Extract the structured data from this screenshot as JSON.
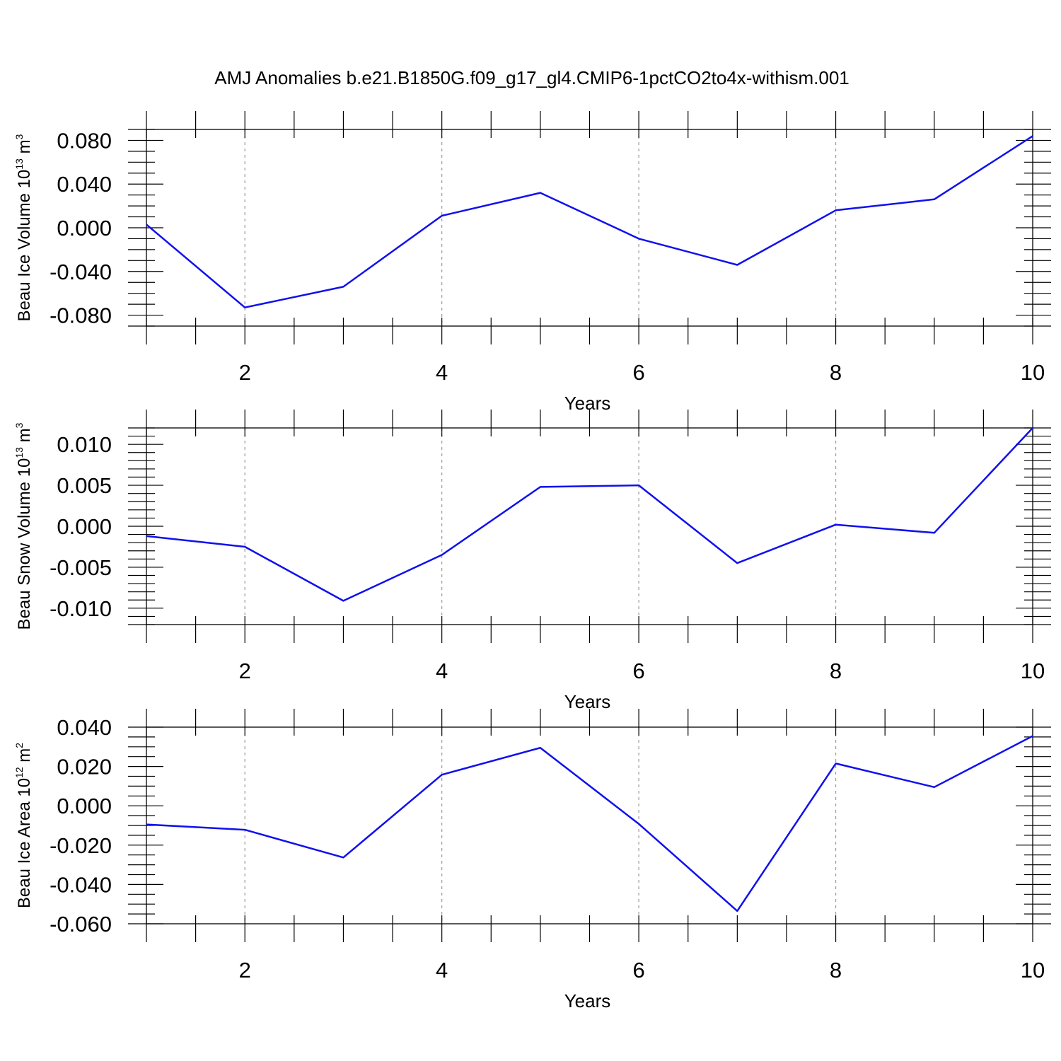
{
  "figure": {
    "title": "AMJ Anomalies b.e21.B1850G.f09_g17_gl4.CMIP6-1pctCO2to4x-withism.001"
  },
  "colors": {
    "line": "#1010ee",
    "grid": "#9a9a9a",
    "axis": "#000000",
    "background": "#ffffff"
  },
  "chart_data": [
    {
      "type": "line",
      "xlabel": "Years",
      "ylabel": {
        "prefix": "Beau Ice Volume 10",
        "exponent": "13",
        "unit": " m",
        "unit_exponent": "3"
      },
      "xlim": [
        1,
        10
      ],
      "ylim": [
        -0.09,
        0.09
      ],
      "xticks": [
        2,
        4,
        6,
        8,
        10
      ],
      "xtick_labels": [
        "2",
        "4",
        "6",
        "8",
        "10"
      ],
      "xminor_step": 0.5,
      "yticks": [
        -0.08,
        -0.04,
        0,
        0.04,
        0.08
      ],
      "ytick_labels": [
        "-0.080",
        "-0.040",
        "0.000",
        "0.040",
        "0.080"
      ],
      "yminor_step": 0.01,
      "grid": "x-dashed",
      "series": [
        {
          "x": [
            1,
            2,
            3,
            4,
            5,
            6,
            7,
            8,
            9,
            10
          ],
          "values": [
            0.003,
            -0.073,
            -0.054,
            0.011,
            0.032,
            -0.01,
            -0.034,
            0.016,
            0.026,
            0.084
          ]
        }
      ]
    },
    {
      "type": "line",
      "xlabel": "Years",
      "ylabel": {
        "prefix": "Beau Snow Volume 10",
        "exponent": "13",
        "unit": " m",
        "unit_exponent": "3"
      },
      "xlim": [
        1,
        10
      ],
      "ylim": [
        -0.012,
        0.012
      ],
      "xticks": [
        2,
        4,
        6,
        8,
        10
      ],
      "xtick_labels": [
        "2",
        "4",
        "6",
        "8",
        "10"
      ],
      "xminor_step": 0.5,
      "yticks": [
        -0.01,
        -0.005,
        0,
        0.005,
        0.01
      ],
      "ytick_labels": [
        "-0.010",
        "-0.005",
        "0.000",
        "0.005",
        "0.010"
      ],
      "yminor_step": 0.001,
      "grid": "x-dashed",
      "series": [
        {
          "x": [
            1,
            2,
            3,
            4,
            5,
            6,
            7,
            8,
            9,
            10
          ],
          "values": [
            -0.0012,
            -0.0025,
            -0.0091,
            -0.0035,
            0.0048,
            0.005,
            -0.0045,
            0.0002,
            -0.0008,
            0.012
          ]
        }
      ]
    },
    {
      "type": "line",
      "xlabel": "Years",
      "ylabel": {
        "prefix": "Beau Ice Area 10",
        "exponent": "12",
        "unit": " m",
        "unit_exponent": "2"
      },
      "xlim": [
        1,
        10
      ],
      "ylim": [
        -0.06,
        0.04
      ],
      "xticks": [
        2,
        4,
        6,
        8,
        10
      ],
      "xtick_labels": [
        "2",
        "4",
        "6",
        "8",
        "10"
      ],
      "xminor_step": 0.5,
      "yticks": [
        -0.06,
        -0.04,
        -0.02,
        0,
        0.02,
        0.04
      ],
      "ytick_labels": [
        "-0.060",
        "-0.040",
        "-0.020",
        "0.000",
        "0.020",
        "0.040"
      ],
      "yminor_step": 0.005,
      "grid": "x-dashed",
      "series": [
        {
          "x": [
            1,
            2,
            3,
            4,
            5,
            6,
            7,
            8,
            9,
            10
          ],
          "values": [
            -0.0095,
            -0.0122,
            -0.0263,
            0.0158,
            0.0295,
            -0.0092,
            -0.0535,
            0.0215,
            0.0095,
            0.0355
          ]
        }
      ]
    }
  ]
}
